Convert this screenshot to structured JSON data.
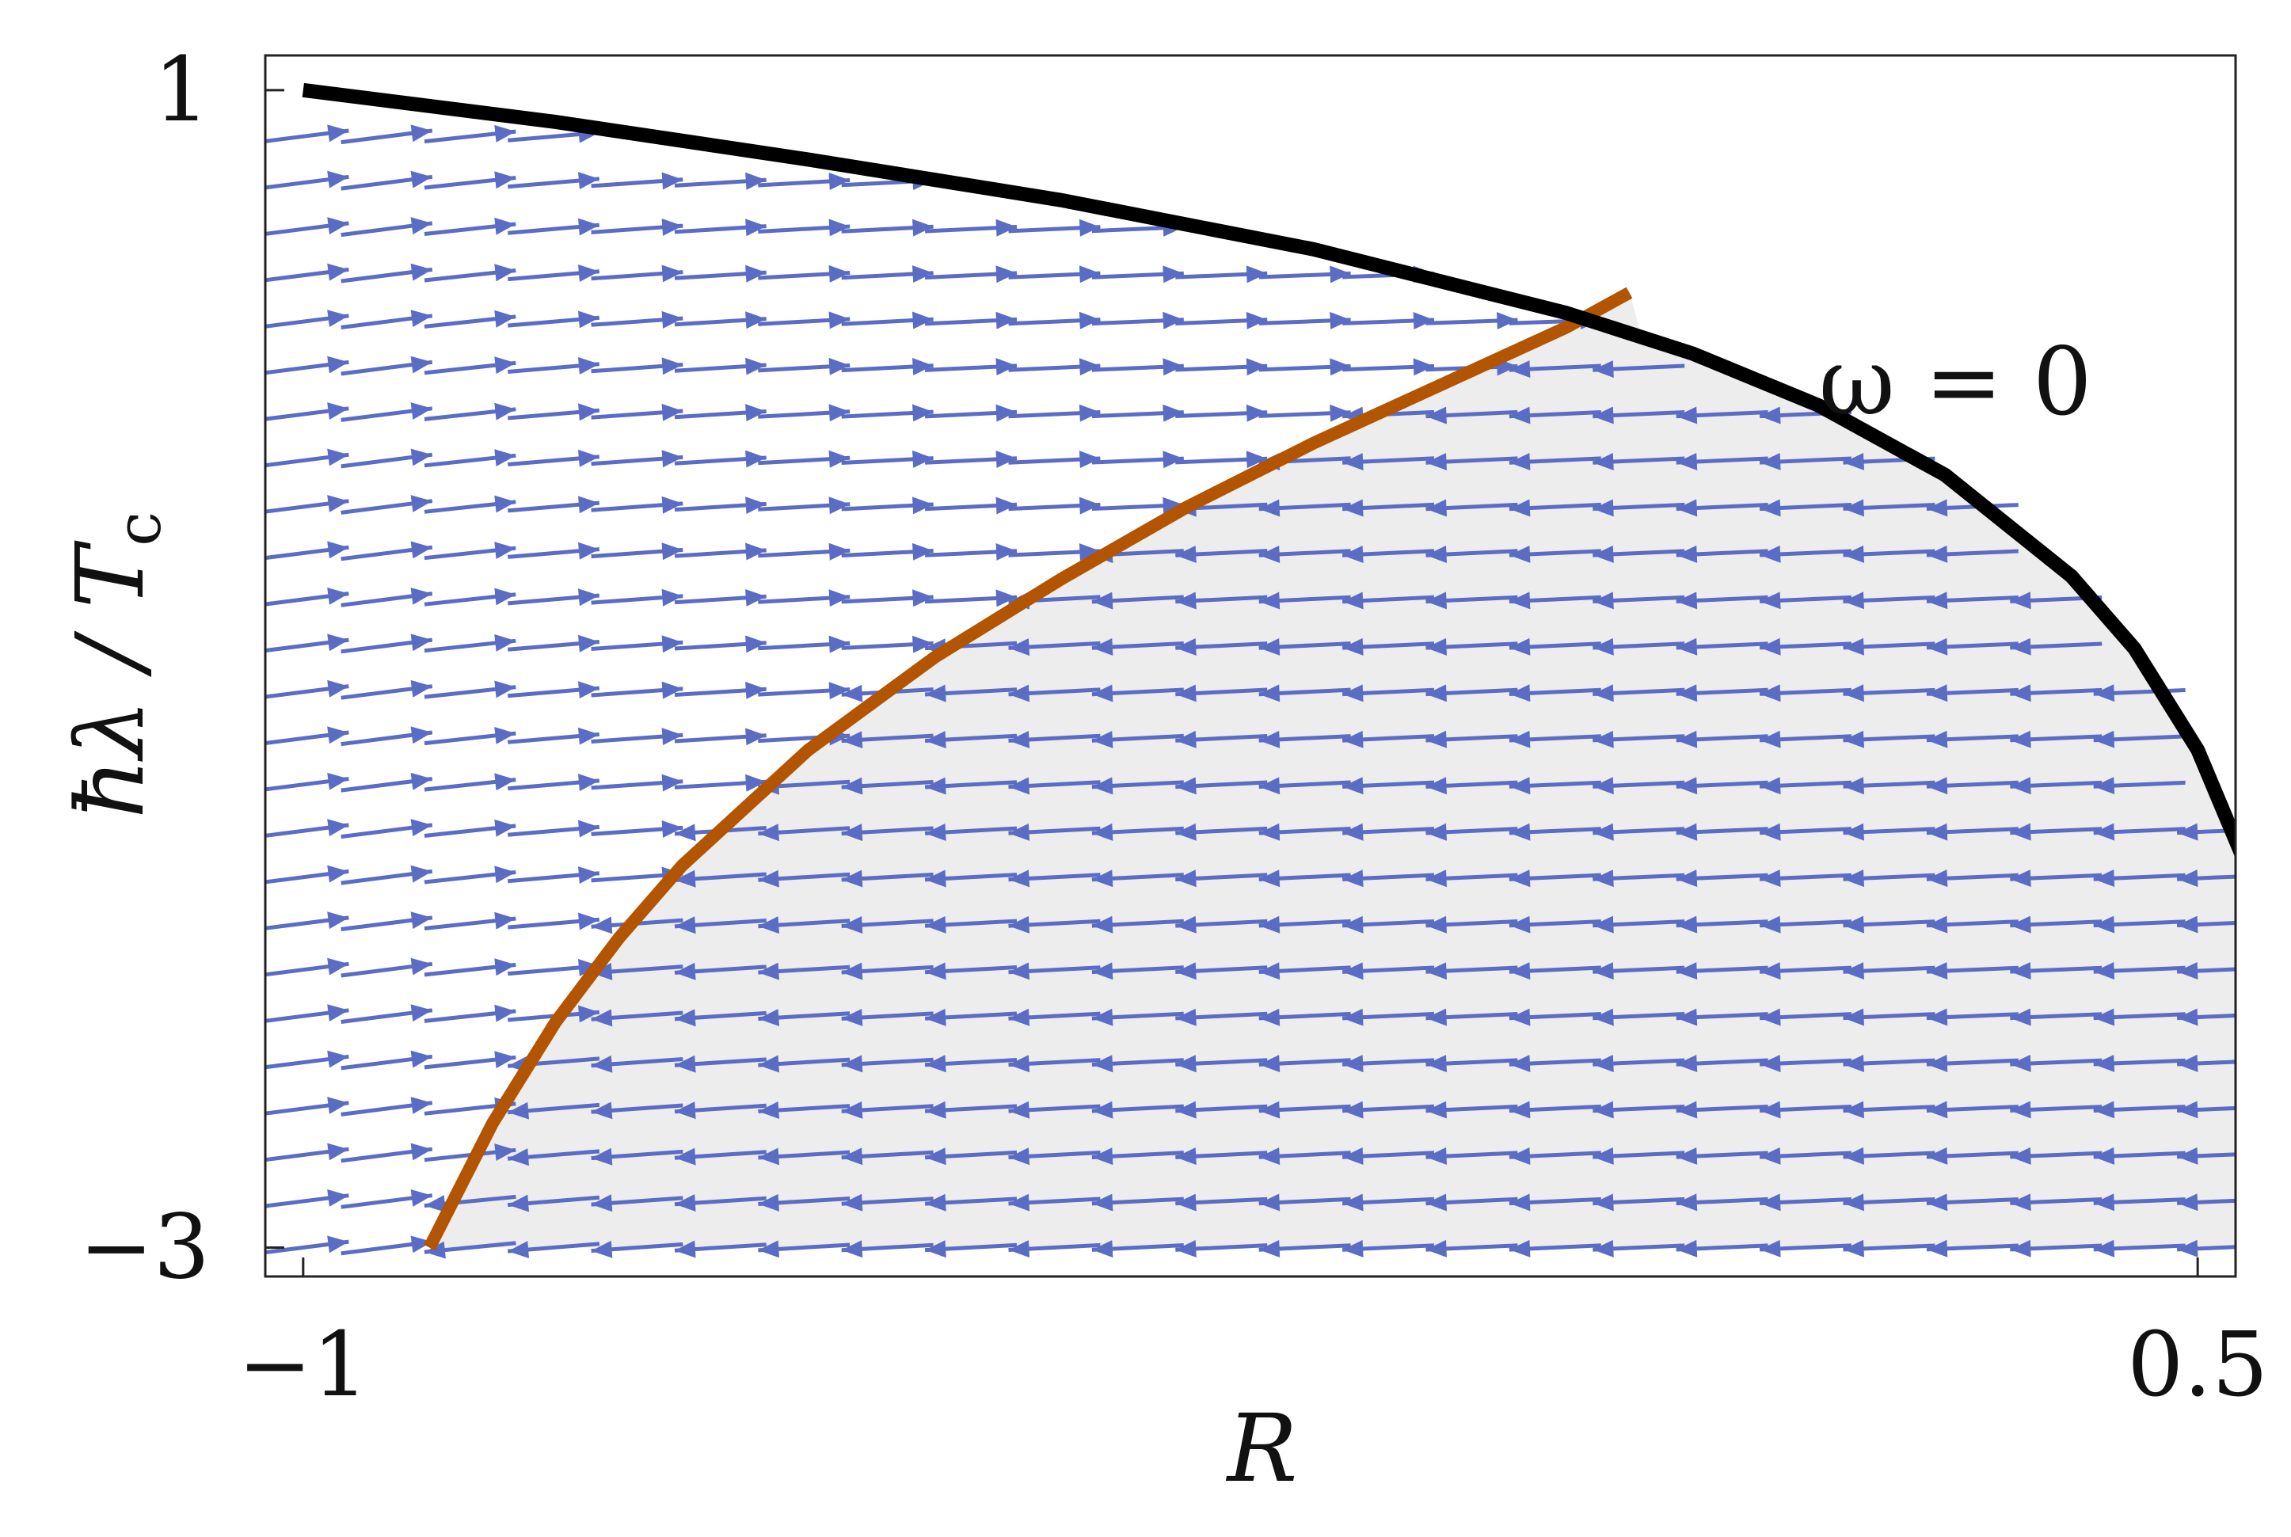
{
  "chart_data": {
    "type": "line",
    "xlabel": "R",
    "ylabel": "ħλ / T",
    "ylabel_sub": "c",
    "xlim": [
      -1.03,
      0.53
    ],
    "ylim": [
      -3.1,
      1.12
    ],
    "x_ticks": [
      {
        "value": -1,
        "label": "−1"
      },
      {
        "value": 0.5,
        "label": "0.5"
      }
    ],
    "y_ticks": [
      {
        "value": 1,
        "label": "1"
      },
      {
        "value": -3,
        "label": "−3"
      }
    ],
    "annotation": {
      "text": "ω = 0",
      "x": 0.2,
      "y": -0.12
    },
    "colors": {
      "boundary": "#000000",
      "separatrix": "#b35400",
      "arrows": "#5b6cc4",
      "shaded_region": "#ededed"
    },
    "series": [
      {
        "id": "omega-zero-boundary",
        "x": [
          -1.0,
          -0.8,
          -0.6,
          -0.4,
          -0.2,
          0.0,
          0.1,
          0.2,
          0.3,
          0.4,
          0.45,
          0.5,
          0.55
        ],
        "y": [
          1.0,
          0.89,
          0.76,
          0.62,
          0.45,
          0.23,
          0.09,
          -0.09,
          -0.33,
          -0.68,
          -0.93,
          -1.28,
          -1.8
        ]
      },
      {
        "id": "separatrix",
        "x": [
          -0.9,
          -0.85,
          -0.8,
          -0.75,
          -0.7,
          -0.6,
          -0.5,
          -0.4,
          -0.3,
          -0.2,
          -0.1,
          0.0,
          0.05
        ],
        "y": [
          -3.0,
          -2.57,
          -2.22,
          -1.93,
          -1.68,
          -1.28,
          -0.96,
          -0.69,
          -0.44,
          -0.22,
          -0.02,
          0.18,
          0.3
        ]
      }
    ],
    "vector_field": {
      "description": "flow arrows point toward upper right above the separatrix and toward lower left below it",
      "region_below_separatrix_shaded": true
    }
  }
}
